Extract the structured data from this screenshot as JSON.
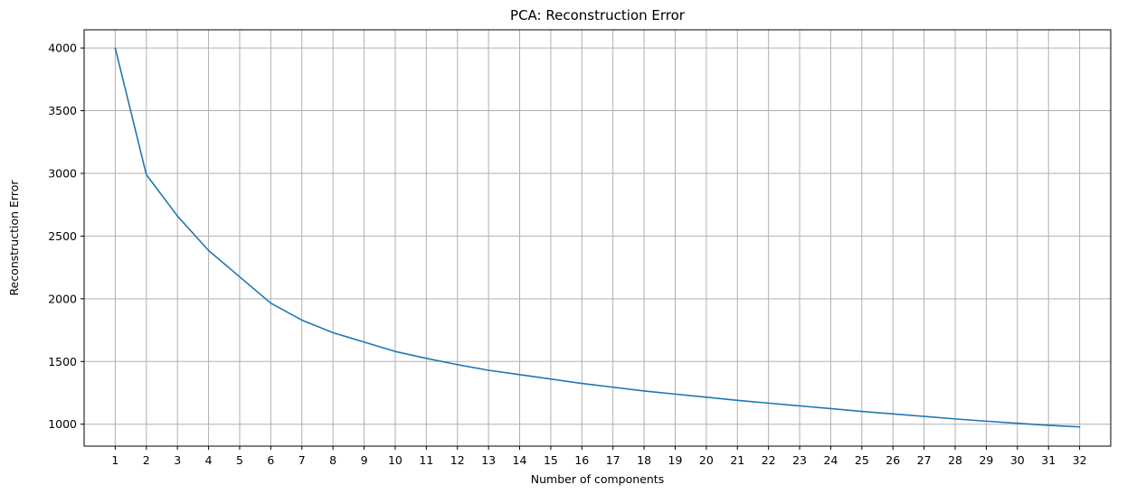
{
  "chart_data": {
    "type": "line",
    "title": "PCA: Reconstruction Error",
    "xlabel": "Number of components",
    "ylabel": "Reconstruction Error",
    "x": [
      1,
      2,
      3,
      4,
      5,
      6,
      7,
      8,
      9,
      10,
      11,
      12,
      13,
      14,
      15,
      16,
      17,
      18,
      19,
      20,
      21,
      22,
      23,
      24,
      25,
      26,
      27,
      28,
      29,
      30,
      31,
      32
    ],
    "series": [
      {
        "values": [
          4000,
          2990,
          2660,
          2385,
          2175,
          1965,
          1830,
          1730,
          1655,
          1580,
          1525,
          1475,
          1430,
          1395,
          1360,
          1325,
          1295,
          1265,
          1240,
          1215,
          1190,
          1168,
          1146,
          1124,
          1102,
          1082,
          1062,
          1042,
          1024,
          1007,
          991,
          978
        ]
      }
    ],
    "xlim": [
      0,
      33
    ],
    "ylim": [
      825,
      4145
    ],
    "yticks": [
      1000,
      1500,
      2000,
      2500,
      3000,
      3500,
      4000
    ],
    "grid": true,
    "line_color": "#1f77b4",
    "grid_color": "#b0b0b0",
    "axis_color": "#000000"
  }
}
